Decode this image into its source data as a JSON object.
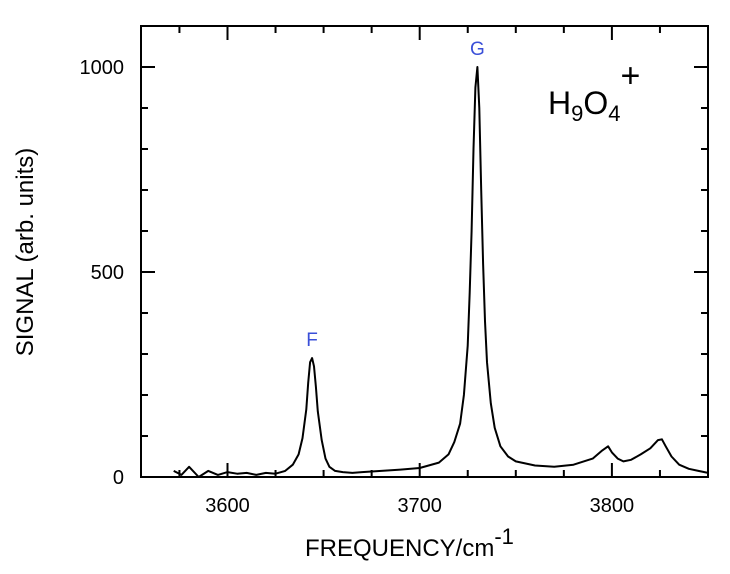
{
  "chart_data": {
    "type": "line",
    "xlabel": "FREQUENCY/cm",
    "xlabel_sup": "-1",
    "ylabel": "SIGNAL (arb. units)",
    "xlim": [
      3555,
      3850
    ],
    "ylim": [
      0,
      1100
    ],
    "x_ticks": [
      3600,
      3700,
      3800
    ],
    "y_ticks": [
      0,
      500,
      1000
    ],
    "x_tick_labels": [
      "3600",
      "3700",
      "3800"
    ],
    "y_tick_labels": [
      "0",
      "500",
      "1000"
    ],
    "grid": false,
    "species": {
      "base": "H",
      "sub1": "9",
      "mid": "O",
      "sub2": "4",
      "sup": "+"
    },
    "peak_label_color": "#3a4fd8",
    "line_color": "#000000",
    "peaks": [
      {
        "label": "F",
        "x": 3644,
        "y": 290
      },
      {
        "label": "G",
        "x": 3730,
        "y": 1000
      }
    ],
    "series": [
      {
        "x": [
          3572,
          3576,
          3580,
          3585,
          3590,
          3595,
          3600,
          3605,
          3610,
          3615,
          3620,
          3625,
          3630,
          3634,
          3637,
          3639,
          3641,
          3642,
          3643,
          3644,
          3645,
          3646,
          3647,
          3649,
          3651,
          3653,
          3656,
          3660,
          3665,
          3670,
          3680,
          3690,
          3700,
          3710,
          3715,
          3718,
          3721,
          3723,
          3725,
          3726,
          3727,
          3728,
          3729,
          3730,
          3731,
          3732,
          3733,
          3734,
          3735,
          3737,
          3739,
          3742,
          3746,
          3750,
          3760,
          3770,
          3780,
          3790,
          3795,
          3798,
          3800,
          3803,
          3806,
          3810,
          3815,
          3820,
          3824,
          3826,
          3828,
          3831,
          3835,
          3840,
          3845,
          3850
        ],
        "y": [
          15,
          5,
          25,
          0,
          15,
          5,
          12,
          8,
          10,
          5,
          10,
          8,
          15,
          30,
          55,
          95,
          165,
          230,
          280,
          290,
          270,
          220,
          160,
          90,
          45,
          25,
          15,
          12,
          10,
          12,
          15,
          18,
          22,
          35,
          55,
          85,
          130,
          200,
          320,
          450,
          600,
          800,
          950,
          1000,
          900,
          700,
          520,
          380,
          280,
          180,
          120,
          75,
          50,
          38,
          28,
          25,
          30,
          45,
          65,
          75,
          60,
          45,
          38,
          42,
          55,
          70,
          90,
          92,
          75,
          50,
          30,
          20,
          15,
          10
        ]
      }
    ]
  }
}
